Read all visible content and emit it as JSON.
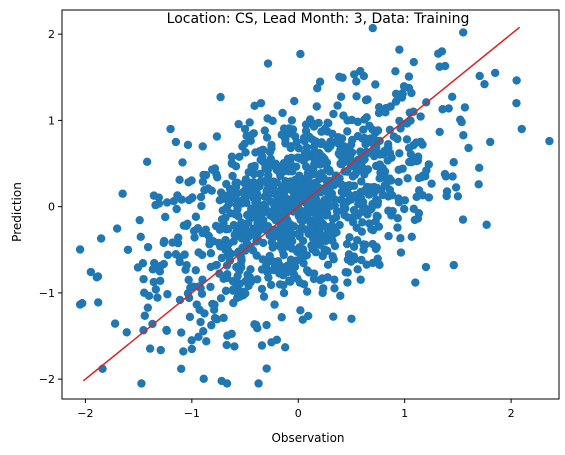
{
  "chart_data": {
    "type": "scatter",
    "title": "Location: CS, Lead Month: 3, Data: Training",
    "xlabel": "Observation",
    "ylabel": "Prediction",
    "xlim": [
      -2.22,
      2.45
    ],
    "ylim": [
      -2.23,
      2.28
    ],
    "xticks": [
      -2,
      -1,
      0,
      1,
      2
    ],
    "yticks": [
      -2,
      -1,
      0,
      1,
      2
    ],
    "grid": false,
    "legend": "none",
    "point_color": "#1f77b4",
    "line_color": "#d62728",
    "reference_line": {
      "x": [
        -2.02,
        2.08
      ],
      "y": [
        -2.02,
        2.08
      ]
    },
    "points_annotated": [
      [
        -2.03,
        -1.12
      ],
      [
        -1.88,
        -1.11
      ],
      [
        -1.65,
        0.15
      ],
      [
        -1.6,
        -0.5
      ],
      [
        -1.48,
        -0.35
      ],
      [
        -1.42,
        0.52
      ],
      [
        -1.37,
        -1.36
      ],
      [
        -1.2,
        0.9
      ],
      [
        -1.15,
        0.75
      ],
      [
        -1.1,
        -1.88
      ],
      [
        -1.0,
        -1.65
      ],
      [
        -0.73,
        1.27
      ],
      [
        -0.72,
        -2.02
      ],
      [
        -0.6,
        -1.62
      ],
      [
        -0.5,
        0.9
      ],
      [
        -0.35,
        1.2
      ],
      [
        0.02,
        1.77
      ],
      [
        0.5,
        -1.3
      ],
      [
        0.7,
        2.07
      ],
      [
        0.95,
        1.82
      ],
      [
        1.1,
        -0.88
      ],
      [
        1.2,
        -0.7
      ],
      [
        1.35,
        1.8
      ],
      [
        1.38,
        1.63
      ],
      [
        1.55,
        2.02
      ],
      [
        1.6,
        0.68
      ],
      [
        1.75,
        1.42
      ],
      [
        1.85,
        1.55
      ],
      [
        2.05,
        1.2
      ],
      [
        2.1,
        0.9
      ],
      [
        2.36,
        0.76
      ],
      [
        1.5,
        0.12
      ],
      [
        1.45,
        0.35
      ],
      [
        1.7,
        0.45
      ],
      [
        -1.25,
        -0.12
      ],
      [
        -1.3,
        -0.75
      ]
    ],
    "cloud": {
      "count": 1100,
      "mean_x": 0.0,
      "sd_x": 0.65,
      "slope": 0.5,
      "sd_noise": 0.55
    }
  }
}
